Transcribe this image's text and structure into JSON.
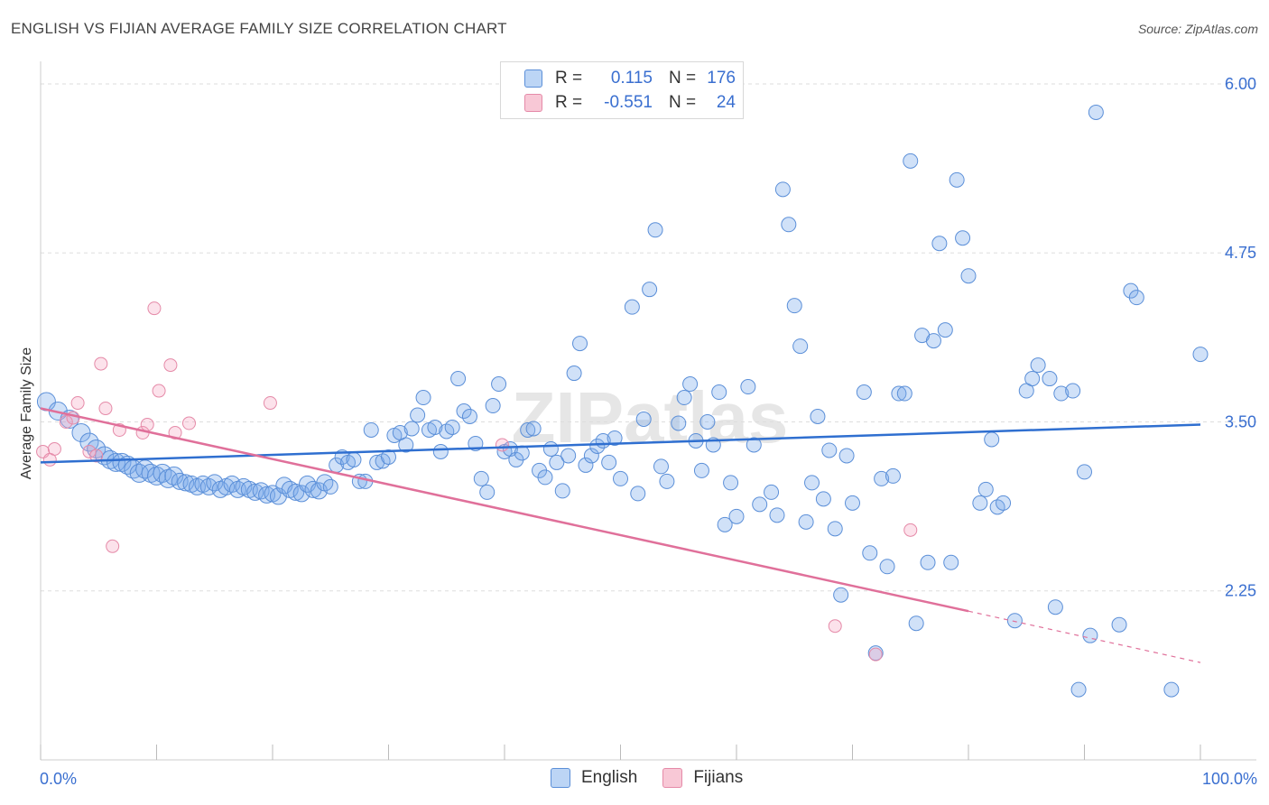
{
  "title": "ENGLISH VS FIJIAN AVERAGE FAMILY SIZE CORRELATION CHART",
  "source": "Source: ZipAtlas.com",
  "watermark": "ZIPatlas",
  "legend": {
    "rows": [
      {
        "r_label": "R =",
        "r_value": "0.115",
        "n_label": "N =",
        "n_value": "176",
        "color": "#a8c8f0"
      },
      {
        "r_label": "R =",
        "r_value": "-0.551",
        "n_label": "N =",
        "n_value": "24",
        "color": "#f5b8cb"
      }
    ]
  },
  "bottom_legend": [
    {
      "label": "English",
      "color": "#a8c8f0"
    },
    {
      "label": "Fijians",
      "color": "#f5b8cb"
    }
  ],
  "colors": {
    "english_fill": "rgba(120,170,235,0.35)",
    "english_stroke": "#5b8fd8",
    "english_line": "#2f6fd0",
    "fijian_fill": "rgba(245,160,190,0.30)",
    "fijian_stroke": "#e58aa8",
    "fijian_line": "#e0709a",
    "tick_label": "#3a6fd0",
    "grid": "#dddddd"
  },
  "chart_data": {
    "type": "scatter",
    "title": "ENGLISH VS FIJIAN AVERAGE FAMILY SIZE CORRELATION CHART",
    "xlabel": "",
    "ylabel": "Average Family Size",
    "xlim": [
      0,
      100
    ],
    "ylim": [
      1.0,
      6.1
    ],
    "x_tick_labels": [
      "0.0%",
      "100.0%"
    ],
    "y_ticks": [
      2.25,
      3.5,
      4.75,
      6.0
    ],
    "y_tick_labels": [
      "2.25",
      "3.50",
      "4.75",
      "6.00"
    ],
    "series": [
      {
        "name": "English",
        "trend": {
          "x": [
            0,
            100
          ],
          "y": [
            3.2,
            3.48
          ]
        },
        "points": [
          [
            0.5,
            3.65
          ],
          [
            1.5,
            3.58
          ],
          [
            2.5,
            3.52
          ],
          [
            3.5,
            3.42
          ],
          [
            4.2,
            3.35
          ],
          [
            4.8,
            3.3
          ],
          [
            5.5,
            3.25
          ],
          [
            6,
            3.22
          ],
          [
            6.5,
            3.2
          ],
          [
            7,
            3.2
          ],
          [
            7.5,
            3.18
          ],
          [
            8,
            3.15
          ],
          [
            8.5,
            3.12
          ],
          [
            9,
            3.15
          ],
          [
            9.5,
            3.12
          ],
          [
            10,
            3.1
          ],
          [
            10.5,
            3.12
          ],
          [
            11,
            3.08
          ],
          [
            11.5,
            3.1
          ],
          [
            12,
            3.06
          ],
          [
            12.5,
            3.05
          ],
          [
            13,
            3.04
          ],
          [
            13.5,
            3.02
          ],
          [
            14,
            3.04
          ],
          [
            14.5,
            3.02
          ],
          [
            15,
            3.05
          ],
          [
            15.5,
            3.0
          ],
          [
            16,
            3.02
          ],
          [
            16.5,
            3.04
          ],
          [
            17,
            3.0
          ],
          [
            17.5,
            3.02
          ],
          [
            18,
            3.0
          ],
          [
            18.5,
            2.98
          ],
          [
            19,
            2.99
          ],
          [
            19.5,
            2.96
          ],
          [
            20,
            2.97
          ],
          [
            20.5,
            2.95
          ],
          [
            21,
            3.03
          ],
          [
            21.5,
            3.0
          ],
          [
            22,
            2.98
          ],
          [
            22.5,
            2.97
          ],
          [
            23,
            3.04
          ],
          [
            23.5,
            3.0
          ],
          [
            24,
            2.99
          ],
          [
            24.5,
            3.05
          ],
          [
            25,
            3.02
          ],
          [
            25.5,
            3.18
          ],
          [
            26,
            3.24
          ],
          [
            26.5,
            3.2
          ],
          [
            27,
            3.22
          ],
          [
            27.5,
            3.06
          ],
          [
            28,
            3.06
          ],
          [
            28.5,
            3.44
          ],
          [
            29,
            3.2
          ],
          [
            29.5,
            3.21
          ],
          [
            30,
            3.24
          ],
          [
            30.5,
            3.4
          ],
          [
            31,
            3.42
          ],
          [
            31.5,
            3.33
          ],
          [
            32,
            3.45
          ],
          [
            32.5,
            3.55
          ],
          [
            33,
            3.68
          ],
          [
            33.5,
            3.44
          ],
          [
            34,
            3.46
          ],
          [
            34.5,
            3.28
          ],
          [
            35,
            3.43
          ],
          [
            35.5,
            3.46
          ],
          [
            36,
            3.82
          ],
          [
            36.5,
            3.58
          ],
          [
            37,
            3.54
          ],
          [
            37.5,
            3.34
          ],
          [
            38,
            3.08
          ],
          [
            38.5,
            2.98
          ],
          [
            39,
            3.62
          ],
          [
            39.5,
            3.78
          ],
          [
            40,
            3.28
          ],
          [
            40.5,
            3.3
          ],
          [
            41,
            3.22
          ],
          [
            41.5,
            3.27
          ],
          [
            42,
            3.44
          ],
          [
            42.5,
            3.45
          ],
          [
            43,
            3.14
          ],
          [
            43.5,
            3.09
          ],
          [
            44,
            3.3
          ],
          [
            44.5,
            3.2
          ],
          [
            45,
            2.99
          ],
          [
            45.5,
            3.25
          ],
          [
            46,
            3.86
          ],
          [
            46.5,
            4.08
          ],
          [
            47,
            3.18
          ],
          [
            47.5,
            3.25
          ],
          [
            48,
            3.32
          ],
          [
            48.5,
            3.36
          ],
          [
            49,
            3.2
          ],
          [
            49.5,
            3.38
          ],
          [
            50,
            3.08
          ],
          [
            51,
            4.35
          ],
          [
            51.5,
            2.97
          ],
          [
            52,
            3.52
          ],
          [
            52.5,
            4.48
          ],
          [
            53,
            4.92
          ],
          [
            53.5,
            3.17
          ],
          [
            54,
            3.06
          ],
          [
            55,
            3.49
          ],
          [
            55.5,
            3.68
          ],
          [
            56,
            3.78
          ],
          [
            56.5,
            3.36
          ],
          [
            57,
            3.14
          ],
          [
            57.5,
            3.5
          ],
          [
            58,
            3.33
          ],
          [
            58.5,
            3.72
          ],
          [
            59,
            2.74
          ],
          [
            59.5,
            3.05
          ],
          [
            60,
            2.8
          ],
          [
            61,
            3.76
          ],
          [
            61.5,
            3.33
          ],
          [
            62,
            2.89
          ],
          [
            63,
            2.98
          ],
          [
            63.5,
            2.81
          ],
          [
            64,
            5.22
          ],
          [
            64.5,
            4.96
          ],
          [
            65,
            4.36
          ],
          [
            65.5,
            4.06
          ],
          [
            66,
            2.76
          ],
          [
            66.5,
            3.05
          ],
          [
            67,
            3.54
          ],
          [
            67.5,
            2.93
          ],
          [
            68,
            3.29
          ],
          [
            68.5,
            2.71
          ],
          [
            69,
            2.22
          ],
          [
            69.5,
            3.25
          ],
          [
            70,
            2.9
          ],
          [
            71,
            3.72
          ],
          [
            71.5,
            2.53
          ],
          [
            72,
            1.79
          ],
          [
            72.5,
            3.08
          ],
          [
            73,
            2.43
          ],
          [
            73.5,
            3.1
          ],
          [
            74,
            3.71
          ],
          [
            74.5,
            3.71
          ],
          [
            75,
            5.43
          ],
          [
            75.5,
            2.01
          ],
          [
            76,
            4.14
          ],
          [
            76.5,
            2.46
          ],
          [
            77,
            4.1
          ],
          [
            77.5,
            4.82
          ],
          [
            78,
            4.18
          ],
          [
            78.5,
            2.46
          ],
          [
            79,
            5.29
          ],
          [
            79.5,
            4.86
          ],
          [
            80,
            4.58
          ],
          [
            81,
            2.9
          ],
          [
            81.5,
            3.0
          ],
          [
            82,
            3.37
          ],
          [
            82.5,
            2.87
          ],
          [
            83,
            2.9
          ],
          [
            84,
            2.03
          ],
          [
            85,
            3.73
          ],
          [
            85.5,
            3.82
          ],
          [
            86,
            3.92
          ],
          [
            87,
            3.82
          ],
          [
            87.5,
            2.13
          ],
          [
            88,
            3.71
          ],
          [
            89,
            3.73
          ],
          [
            89.5,
            1.52
          ],
          [
            90,
            3.13
          ],
          [
            90.5,
            1.92
          ],
          [
            91,
            5.79
          ],
          [
            93,
            2.0
          ],
          [
            94,
            4.47
          ],
          [
            94.5,
            4.42
          ],
          [
            97.5,
            1.52
          ],
          [
            100,
            4.0
          ]
        ]
      },
      {
        "name": "Fijians",
        "trend": {
          "x": [
            0,
            80
          ],
          "y": [
            3.6,
            2.1
          ]
        },
        "trend_dashed": {
          "x": [
            80,
            100
          ],
          "y": [
            2.1,
            1.72
          ]
        },
        "points": [
          [
            0.2,
            3.28
          ],
          [
            0.8,
            3.22
          ],
          [
            1.2,
            3.3
          ],
          [
            2.2,
            3.5
          ],
          [
            2.8,
            3.53
          ],
          [
            3.2,
            3.64
          ],
          [
            4.2,
            3.28
          ],
          [
            4.8,
            3.25
          ],
          [
            5.2,
            3.93
          ],
          [
            5.6,
            3.6
          ],
          [
            6.2,
            2.58
          ],
          [
            6.8,
            3.44
          ],
          [
            8.8,
            3.42
          ],
          [
            9.2,
            3.48
          ],
          [
            9.8,
            4.34
          ],
          [
            10.2,
            3.73
          ],
          [
            11.2,
            3.92
          ],
          [
            11.6,
            3.42
          ],
          [
            12.8,
            3.49
          ],
          [
            19.8,
            3.64
          ],
          [
            39.8,
            3.33
          ],
          [
            68.5,
            1.99
          ],
          [
            72,
            1.78
          ],
          [
            75,
            2.7
          ]
        ]
      }
    ]
  }
}
